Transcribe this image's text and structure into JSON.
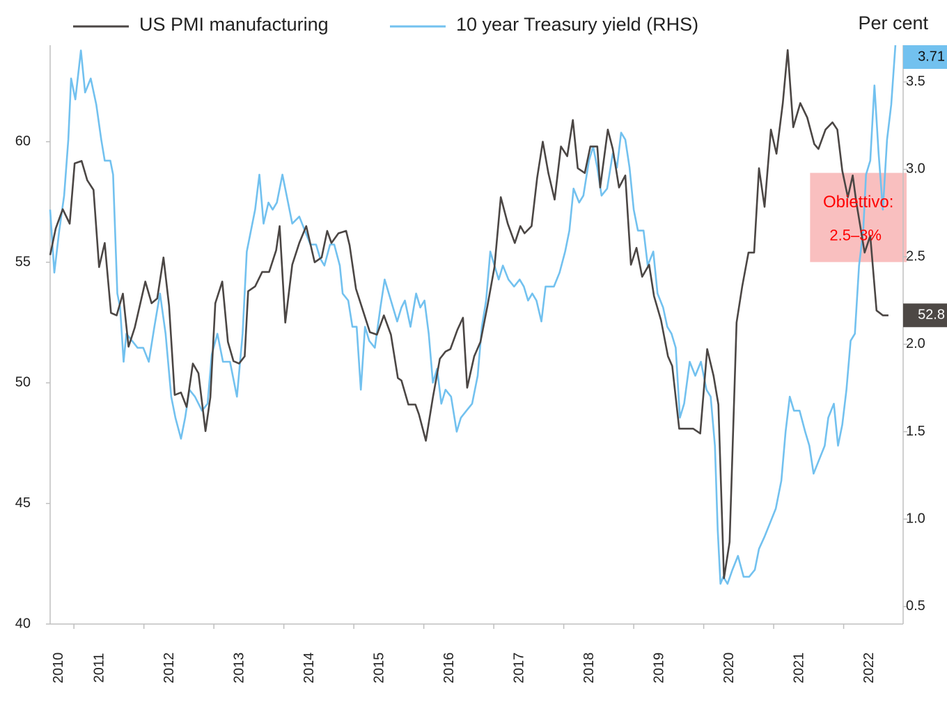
{
  "chart_data": {
    "type": "line",
    "axis_title_right": "Per cent",
    "xlim": [
      2010.66,
      2022.85
    ],
    "xticks": [
      {
        "value": 2010.42,
        "label": "2010"
      },
      {
        "value": 2011,
        "label": "2011"
      },
      {
        "value": 2012,
        "label": "2012"
      },
      {
        "value": 2013,
        "label": "2013"
      },
      {
        "value": 2014,
        "label": "2014"
      },
      {
        "value": 2015,
        "label": "2015"
      },
      {
        "value": 2016,
        "label": "2016"
      },
      {
        "value": 2017,
        "label": "2017"
      },
      {
        "value": 2018,
        "label": "2018"
      },
      {
        "value": 2019,
        "label": "2019"
      },
      {
        "value": 2020,
        "label": "2020"
      },
      {
        "value": 2021,
        "label": "2021"
      },
      {
        "value": 2022,
        "label": "2022"
      }
    ],
    "ylim": [
      40,
      64
    ],
    "yticks": [
      40,
      45,
      50,
      55,
      60
    ],
    "y2lim": [
      0.4,
      3.71
    ],
    "y2ticks": [
      0.5,
      {
        "value": 1,
        "label": "1.0"
      },
      1.5,
      {
        "value": 2,
        "label": "2.0"
      },
      2.5,
      {
        "value": 3,
        "label": "3.0"
      },
      3.5
    ],
    "legend": "top",
    "series": [
      {
        "name": "US PMI manufacturing",
        "color": "#4b4644",
        "axis": "y",
        "end_label": "52.8",
        "x": [
          2010.66,
          2010.74,
          2010.84,
          2010.94,
          2011.01,
          2011.11,
          2011.19,
          2011.28,
          2011.36,
          2011.44,
          2011.53,
          2011.61,
          2011.7,
          2011.78,
          2011.87,
          2012.02,
          2012.11,
          2012.19,
          2012.28,
          2012.36,
          2012.44,
          2012.53,
          2012.61,
          2012.7,
          2012.78,
          2012.88,
          2012.95,
          2013.02,
          2013.12,
          2013.2,
          2013.28,
          2013.36,
          2013.44,
          2013.49,
          2013.59,
          2013.69,
          2013.79,
          2013.89,
          2013.94,
          2014.02,
          2014.12,
          2014.22,
          2014.32,
          2014.44,
          2014.54,
          2014.62,
          2014.68,
          2014.78,
          2014.89,
          2014.94,
          2015.03,
          2015.13,
          2015.23,
          2015.33,
          2015.43,
          2015.53,
          2015.63,
          2015.68,
          2015.78,
          2015.88,
          2015.93,
          2016.03,
          2016.13,
          2016.23,
          2016.31,
          2016.38,
          2016.48,
          2016.56,
          2016.62,
          2016.72,
          2016.81,
          2016.91,
          2017.01,
          2017.1,
          2017.2,
          2017.3,
          2017.38,
          2017.44,
          2017.54,
          2017.62,
          2017.7,
          2017.78,
          2017.87,
          2017.96,
          2018.05,
          2018.13,
          2018.2,
          2018.3,
          2018.38,
          2018.48,
          2018.52,
          2018.63,
          2018.7,
          2018.79,
          2018.88,
          2018.96,
          2019.04,
          2019.12,
          2019.22,
          2019.29,
          2019.39,
          2019.49,
          2019.55,
          2019.65,
          2019.75,
          2019.85,
          2019.95,
          2020.05,
          2020.14,
          2020.21,
          2020.29,
          2020.37,
          2020.47,
          2020.55,
          2020.64,
          2020.72,
          2020.79,
          2020.87,
          2020.96,
          2021.04,
          2021.13,
          2021.2,
          2021.28,
          2021.38,
          2021.48,
          2021.58,
          2021.64,
          2021.74,
          2021.84,
          2021.91,
          2021.98,
          2022.06,
          2022.13,
          2022.18,
          2022.3,
          2022.38,
          2022.47,
          2022.56,
          2022.64
        ],
        "values": [
          55.3,
          56.4,
          57.2,
          56.6,
          59.1,
          59.2,
          58.4,
          58.0,
          54.8,
          55.8,
          52.9,
          52.8,
          53.7,
          51.5,
          52.3,
          54.2,
          53.3,
          53.5,
          55.2,
          53.2,
          49.5,
          49.6,
          49.0,
          50.8,
          50.4,
          48.0,
          49.4,
          53.3,
          54.2,
          51.7,
          50.9,
          50.8,
          51.1,
          53.8,
          54.0,
          54.6,
          54.6,
          55.5,
          56.5,
          52.5,
          54.9,
          55.8,
          56.5,
          55.0,
          55.2,
          56.3,
          55.8,
          56.2,
          56.3,
          55.7,
          53.9,
          53.0,
          52.1,
          52.0,
          52.8,
          52.0,
          50.2,
          50.1,
          49.1,
          49.1,
          48.7,
          47.6,
          49.4,
          51.0,
          51.3,
          51.4,
          52.2,
          52.7,
          49.8,
          51.1,
          51.7,
          53.2,
          54.8,
          57.7,
          56.6,
          55.8,
          56.5,
          56.2,
          56.5,
          58.5,
          60.0,
          58.7,
          57.6,
          59.8,
          59.4,
          60.9,
          58.9,
          58.7,
          59.8,
          59.8,
          58.1,
          60.5,
          59.7,
          58.1,
          58.6,
          54.9,
          55.6,
          54.4,
          54.9,
          53.6,
          52.6,
          51.1,
          50.7,
          48.1,
          48.1,
          48.1,
          47.9,
          51.4,
          50.3,
          49.1,
          41.9,
          43.4,
          52.5,
          54.0,
          55.4,
          55.4,
          58.9,
          57.3,
          60.5,
          59.5,
          61.6,
          63.8,
          60.6,
          61.6,
          61.0,
          59.9,
          59.7,
          60.5,
          60.8,
          60.5,
          58.8,
          57.7,
          58.6,
          57.5,
          55.4,
          56.1,
          53.0,
          52.8,
          52.8
        ]
      },
      {
        "name": "10 year Treasury yield (RHS)",
        "color": "#72c1ef",
        "axis": "y2",
        "end_label": "3.71",
        "x": [
          2010.66,
          2010.72,
          2010.79,
          2010.86,
          2010.92,
          2010.96,
          2011.02,
          2011.1,
          2011.16,
          2011.24,
          2011.32,
          2011.39,
          2011.44,
          2011.52,
          2011.56,
          2011.62,
          2011.66,
          2011.71,
          2011.75,
          2011.83,
          2011.91,
          2011.99,
          2012.07,
          2012.15,
          2012.23,
          2012.31,
          2012.39,
          2012.45,
          2012.53,
          2012.59,
          2012.65,
          2012.73,
          2012.83,
          2012.91,
          2012.97,
          2013.05,
          2013.13,
          2013.23,
          2013.33,
          2013.41,
          2013.47,
          2013.53,
          2013.59,
          2013.65,
          2013.71,
          2013.78,
          2013.84,
          2013.9,
          2013.98,
          2014.04,
          2014.12,
          2014.22,
          2014.3,
          2014.38,
          2014.46,
          2014.52,
          2014.58,
          2014.66,
          2014.72,
          2014.8,
          2014.84,
          2014.92,
          2014.98,
          2015.04,
          2015.1,
          2015.16,
          2015.22,
          2015.3,
          2015.38,
          2015.44,
          2015.5,
          2015.56,
          2015.62,
          2015.68,
          2015.73,
          2015.81,
          2015.89,
          2015.95,
          2016.01,
          2016.07,
          2016.13,
          2016.19,
          2016.25,
          2016.31,
          2016.39,
          2016.47,
          2016.53,
          2016.61,
          2016.69,
          2016.77,
          2016.83,
          2016.89,
          2016.95,
          2017.01,
          2017.07,
          2017.13,
          2017.21,
          2017.29,
          2017.37,
          2017.43,
          2017.49,
          2017.55,
          2017.61,
          2017.68,
          2017.74,
          2017.8,
          2017.86,
          2017.94,
          2018.02,
          2018.08,
          2018.14,
          2018.22,
          2018.28,
          2018.36,
          2018.42,
          2018.48,
          2018.54,
          2018.62,
          2018.7,
          2018.76,
          2018.82,
          2018.88,
          2018.94,
          2019.0,
          2019.06,
          2019.14,
          2019.2,
          2019.28,
          2019.34,
          2019.42,
          2019.48,
          2019.54,
          2019.6,
          2019.66,
          2019.72,
          2019.8,
          2019.88,
          2019.96,
          2020.04,
          2020.1,
          2020.16,
          2020.2,
          2020.24,
          2020.28,
          2020.34,
          2020.41,
          2020.49,
          2020.57,
          2020.65,
          2020.73,
          2020.79,
          2020.87,
          2020.95,
          2021.03,
          2021.11,
          2021.17,
          2021.23,
          2021.29,
          2021.37,
          2021.45,
          2021.51,
          2021.57,
          2021.65,
          2021.73,
          2021.78,
          2021.86,
          2021.92,
          2021.98,
          2022.04,
          2022.1,
          2022.16,
          2022.22,
          2022.28,
          2022.32,
          2022.38,
          2022.44,
          2022.5,
          2022.56,
          2022.62,
          2022.68,
          2022.74
        ],
        "values": [
          2.77,
          2.41,
          2.65,
          2.85,
          3.17,
          3.52,
          3.4,
          3.68,
          3.44,
          3.52,
          3.37,
          3.17,
          3.05,
          3.05,
          2.97,
          2.29,
          2.21,
          1.9,
          2.06,
          2.02,
          1.98,
          1.98,
          1.9,
          2.1,
          2.29,
          2.06,
          1.7,
          1.58,
          1.46,
          1.58,
          1.74,
          1.7,
          1.62,
          1.66,
          1.94,
          2.06,
          1.9,
          1.9,
          1.7,
          2.06,
          2.53,
          2.65,
          2.77,
          2.97,
          2.69,
          2.81,
          2.77,
          2.81,
          2.97,
          2.85,
          2.69,
          2.73,
          2.65,
          2.57,
          2.57,
          2.49,
          2.45,
          2.57,
          2.57,
          2.45,
          2.29,
          2.25,
          2.1,
          2.1,
          1.74,
          2.1,
          2.02,
          1.98,
          2.21,
          2.37,
          2.29,
          2.21,
          2.13,
          2.21,
          2.25,
          2.1,
          2.29,
          2.21,
          2.25,
          2.06,
          1.78,
          1.86,
          1.66,
          1.74,
          1.7,
          1.5,
          1.58,
          1.62,
          1.66,
          1.82,
          2.1,
          2.25,
          2.53,
          2.45,
          2.37,
          2.45,
          2.37,
          2.33,
          2.37,
          2.33,
          2.25,
          2.29,
          2.25,
          2.13,
          2.33,
          2.33,
          2.33,
          2.41,
          2.53,
          2.65,
          2.89,
          2.81,
          2.85,
          3.05,
          3.13,
          3.01,
          2.85,
          2.89,
          3.09,
          3.01,
          3.21,
          3.17,
          3.01,
          2.77,
          2.65,
          2.65,
          2.45,
          2.53,
          2.29,
          2.21,
          2.1,
          2.06,
          1.98,
          1.58,
          1.66,
          1.9,
          1.82,
          1.9,
          1.74,
          1.7,
          1.42,
          0.94,
          0.63,
          0.67,
          0.63,
          0.71,
          0.79,
          0.67,
          0.67,
          0.71,
          0.83,
          0.9,
          0.98,
          1.06,
          1.22,
          1.5,
          1.7,
          1.62,
          1.62,
          1.5,
          1.42,
          1.26,
          1.34,
          1.42,
          1.58,
          1.66,
          1.42,
          1.54,
          1.74,
          2.02,
          2.06,
          2.45,
          2.65,
          2.97,
          3.05,
          3.48,
          3.09,
          2.77,
          3.17,
          3.37,
          3.71
        ]
      }
    ],
    "annotation": {
      "lines": [
        "Obiettivo:",
        "2.5–3%"
      ],
      "color": "#ff0000",
      "fill": "#f8b4b4",
      "xrange": [
        2021.52,
        2022.9
      ],
      "y2range": [
        2.47,
        2.98
      ]
    }
  }
}
